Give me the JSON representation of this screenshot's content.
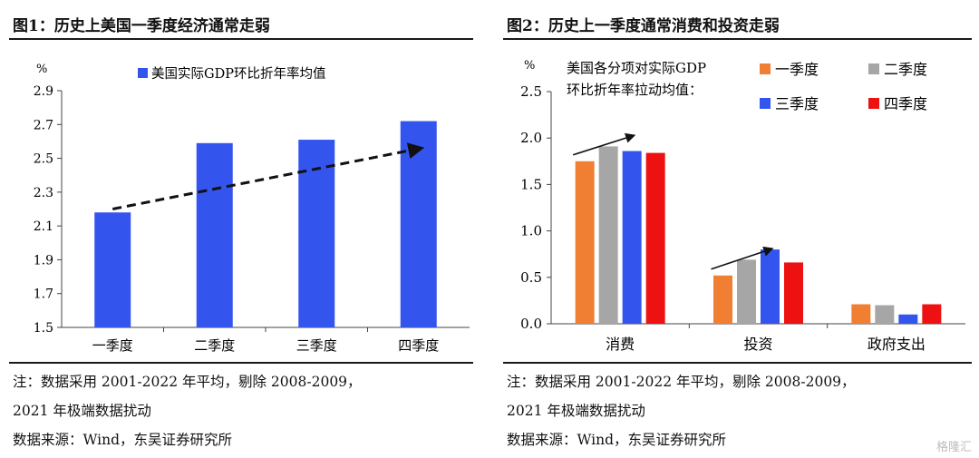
{
  "charts": [
    {
      "id": "chart1",
      "title": "图1：历史上美国一季度经济通常走弱",
      "notes": [
        "注：数据采用 2001-2022 年平均，剔除 2008-2009，",
        "2021 年极端数据扰动",
        "数据来源：Wind，东吴证券研究所"
      ]
    },
    {
      "id": "chart2",
      "title": "图2：历史上一季度通常消费和投资走弱",
      "notes": [
        "注：数据采用 2001-2022 年平均，剔除 2008-2009，",
        "2021 年极端数据扰动",
        "数据来源：Wind，东吴证券研究所"
      ]
    }
  ],
  "chart_data": [
    {
      "type": "bar",
      "title": "",
      "ylabel": "%",
      "ylim": [
        1.5,
        2.9
      ],
      "yticks": [
        "1.5",
        "1.7",
        "1.9",
        "2.1",
        "2.3",
        "2.5",
        "2.7",
        "2.9"
      ],
      "categories": [
        "一季度",
        "二季度",
        "三季度",
        "四季度"
      ],
      "series": [
        {
          "name": "美国实际GDP环比折年率均值",
          "color": "#3355ee",
          "values": [
            2.18,
            2.59,
            2.61,
            2.72
          ]
        }
      ],
      "legend": "top-center",
      "annotation": "dashed rising trend arrow"
    },
    {
      "type": "bar",
      "title": "",
      "ylabel": "%",
      "ylim": [
        0.0,
        2.5
      ],
      "yticks": [
        "0.0",
        "0.5",
        "1.0",
        "1.5",
        "2.0",
        "2.5"
      ],
      "legend_title": [
        "美国各分项对实际GDP",
        "环比折年率拉动均值："
      ],
      "categories": [
        "消费",
        "投资",
        "政府支出"
      ],
      "series": [
        {
          "name": "一季度",
          "color": "#f07f34",
          "values": [
            1.75,
            0.52,
            0.21
          ]
        },
        {
          "name": "二季度",
          "color": "#a6a6a6",
          "values": [
            1.91,
            0.69,
            0.2
          ]
        },
        {
          "name": "三季度",
          "color": "#3355ee",
          "values": [
            1.86,
            0.8,
            0.1
          ]
        },
        {
          "name": "四季度",
          "color": "#ee1111",
          "values": [
            1.84,
            0.66,
            0.21
          ]
        }
      ],
      "legend": "top-right",
      "annotation": "rising arrows over consumption and investment"
    }
  ],
  "watermark": "格隆汇"
}
